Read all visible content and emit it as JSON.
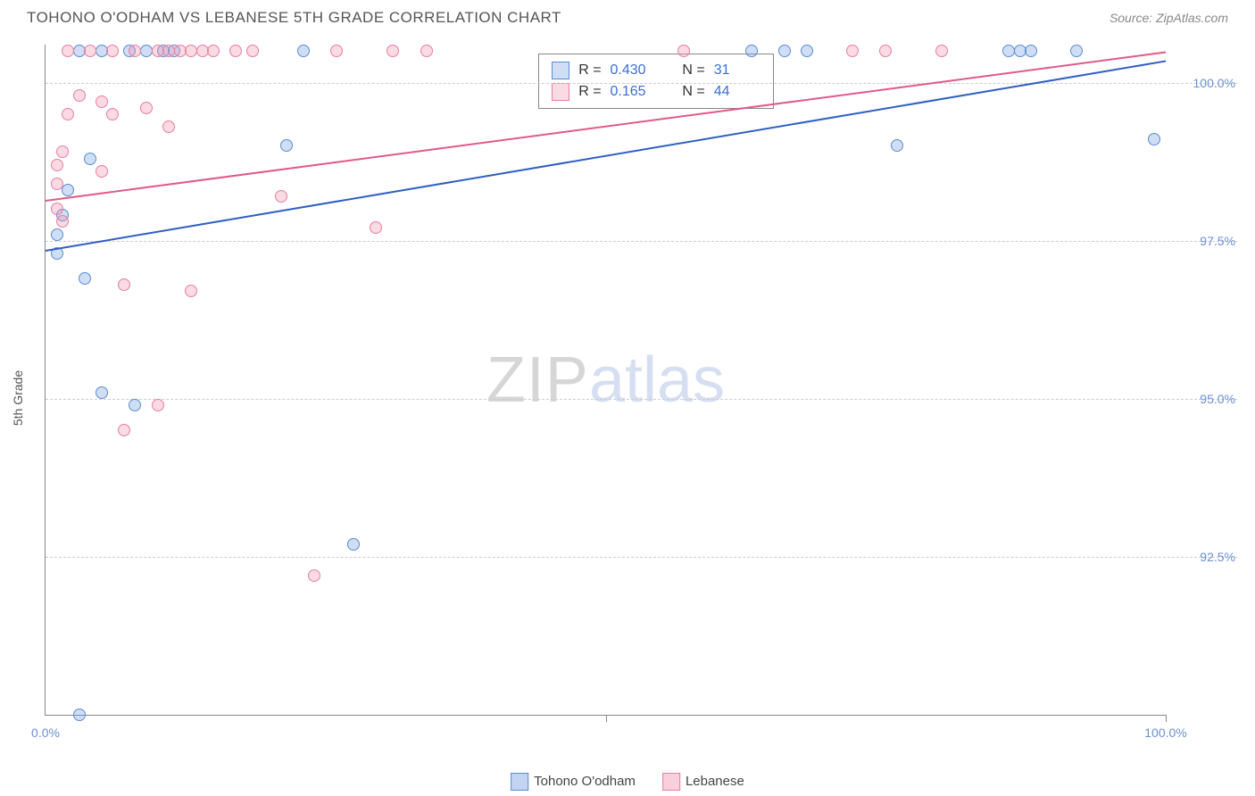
{
  "title": "TOHONO O'ODHAM VS LEBANESE 5TH GRADE CORRELATION CHART",
  "source": "Source: ZipAtlas.com",
  "y_axis_label": "5th Grade",
  "watermark": {
    "part1": "ZIP",
    "part2": "atlas"
  },
  "chart": {
    "type": "scatter",
    "xlim": [
      0,
      100
    ],
    "ylim": [
      90,
      100.6
    ],
    "x_ticks": [
      {
        "pos": 0,
        "label": "0.0%"
      },
      {
        "pos": 50,
        "label": ""
      },
      {
        "pos": 100,
        "label": "100.0%"
      }
    ],
    "y_ticks": [
      {
        "pos": 92.5,
        "label": "92.5%"
      },
      {
        "pos": 95.0,
        "label": "95.0%"
      },
      {
        "pos": 97.5,
        "label": "97.5%"
      },
      {
        "pos": 100.0,
        "label": "100.0%"
      }
    ],
    "grid_color": "#cccccc",
    "axis_color": "#888888",
    "background_color": "#ffffff",
    "label_color": "#6b8fd4",
    "series": [
      {
        "name": "Tohono O'odham",
        "color_fill": "rgba(120,160,225,0.35)",
        "color_stroke": "#5a8bd0",
        "marker_size": 14,
        "trend_color": "#2f5fc4",
        "trend": {
          "x1": 0,
          "y1": 97.35,
          "x2": 100,
          "y2": 100.35
        },
        "R": "0.430",
        "N": "31",
        "points": [
          [
            3,
            100.5
          ],
          [
            5,
            100.5
          ],
          [
            7.5,
            100.5
          ],
          [
            9,
            100.5
          ],
          [
            10.5,
            100.5
          ],
          [
            11.5,
            100.5
          ],
          [
            23,
            100.5
          ],
          [
            63,
            100.5
          ],
          [
            66,
            100.5
          ],
          [
            68,
            100.5
          ],
          [
            86,
            100.5
          ],
          [
            87,
            100.5
          ],
          [
            88,
            100.5
          ],
          [
            92,
            100.5
          ],
          [
            4,
            98.8
          ],
          [
            2,
            98.3
          ],
          [
            1.5,
            97.9
          ],
          [
            1,
            97.6
          ],
          [
            1,
            97.3
          ],
          [
            21.5,
            99.0
          ],
          [
            3.5,
            96.9
          ],
          [
            76,
            99.0
          ],
          [
            99,
            99.1
          ],
          [
            5,
            95.1
          ],
          [
            8,
            94.9
          ],
          [
            27.5,
            92.7
          ],
          [
            3,
            90.0
          ]
        ]
      },
      {
        "name": "Lebanese",
        "color_fill": "rgba(240,150,175,0.35)",
        "color_stroke": "#e87fa0",
        "marker_size": 14,
        "trend_color": "#e15a86",
        "trend": {
          "x1": 0,
          "y1": 98.15,
          "x2": 100,
          "y2": 100.5
        },
        "R": "0.165",
        "N": "44",
        "points": [
          [
            2,
            100.5
          ],
          [
            4,
            100.5
          ],
          [
            6,
            100.5
          ],
          [
            8,
            100.5
          ],
          [
            10,
            100.5
          ],
          [
            11,
            100.5
          ],
          [
            12,
            100.5
          ],
          [
            13,
            100.5
          ],
          [
            14,
            100.5
          ],
          [
            15,
            100.5
          ],
          [
            17,
            100.5
          ],
          [
            18.5,
            100.5
          ],
          [
            26,
            100.5
          ],
          [
            31,
            100.5
          ],
          [
            34,
            100.5
          ],
          [
            57,
            100.5
          ],
          [
            72,
            100.5
          ],
          [
            75,
            100.5
          ],
          [
            80,
            100.5
          ],
          [
            3,
            99.8
          ],
          [
            5,
            99.7
          ],
          [
            2,
            99.5
          ],
          [
            6,
            99.5
          ],
          [
            9,
            99.6
          ],
          [
            11,
            99.3
          ],
          [
            1.5,
            98.9
          ],
          [
            1,
            98.7
          ],
          [
            1,
            98.4
          ],
          [
            1,
            98.0
          ],
          [
            1.5,
            97.8
          ],
          [
            5,
            98.6
          ],
          [
            21,
            98.2
          ],
          [
            29.5,
            97.7
          ],
          [
            7,
            96.8
          ],
          [
            13,
            96.7
          ],
          [
            10,
            94.9
          ],
          [
            7,
            94.5
          ],
          [
            24,
            92.2
          ]
        ]
      }
    ]
  },
  "legend_bottom": [
    {
      "label": "Tohono O'odham",
      "fill": "rgba(120,160,225,0.45)",
      "stroke": "#5a8bd0"
    },
    {
      "label": "Lebanese",
      "fill": "rgba(240,150,175,0.45)",
      "stroke": "#e87fa0"
    }
  ],
  "stats_labels": {
    "R": "R =",
    "N": "N ="
  }
}
